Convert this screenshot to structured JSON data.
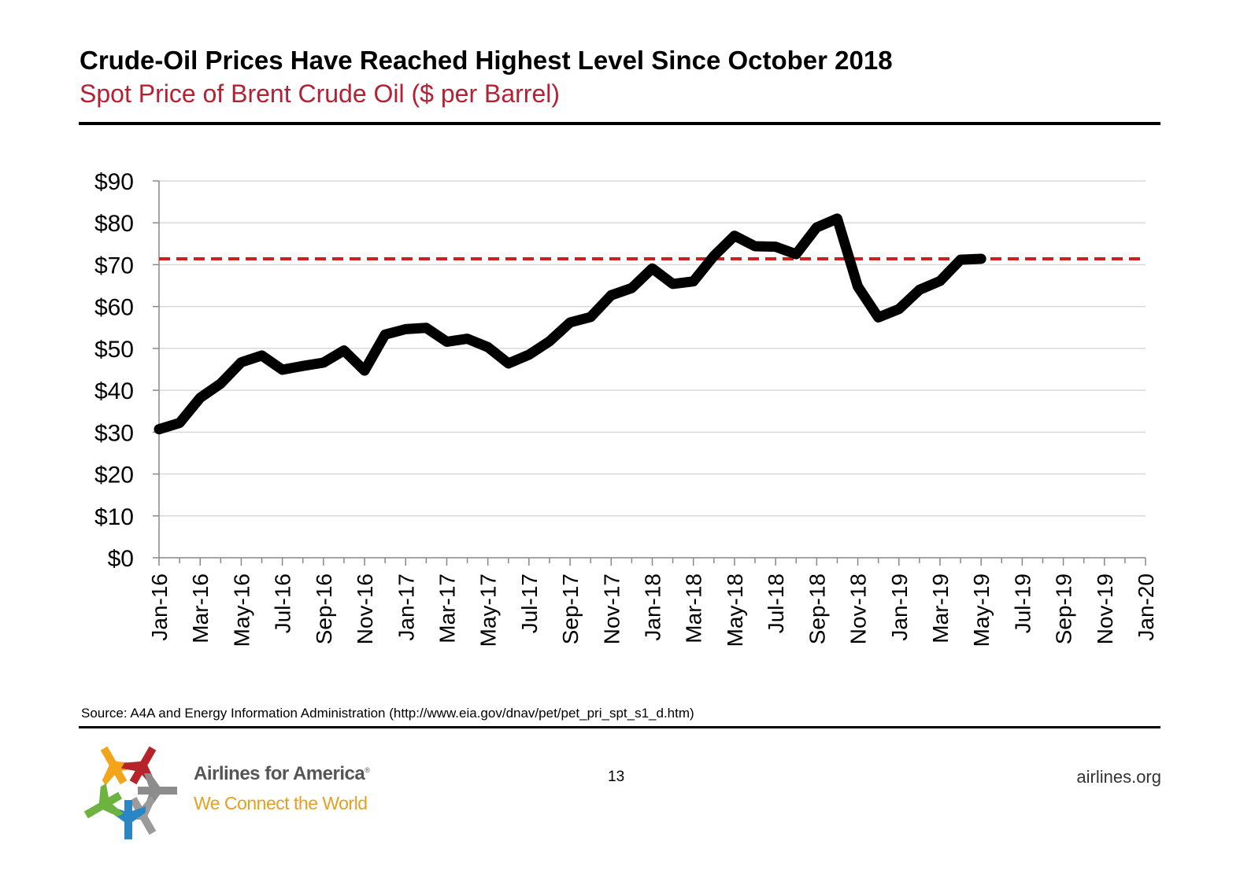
{
  "header": {
    "title": "Crude-Oil Prices Have Reached Highest Level Since October 2018",
    "subtitle": "Spot Price of Brent Crude Oil ($ per Barrel)"
  },
  "footer": {
    "source": "Source: A4A and Energy Information Administration (http://www.eia.gov/dnav/pet/pet_pri_spt_s1_d.htm)",
    "page_number": "13",
    "site": "airlines.org",
    "brand_name": "Airlines for America",
    "brand_mark": "®",
    "brand_tagline": "We Connect the World"
  },
  "colors": {
    "subtitle": "#b22234",
    "series_line": "#000000",
    "reference_line": "#cc1f1f",
    "grid": "#d9d9d9",
    "tagline": "#e6a020"
  },
  "chart_data": {
    "type": "line",
    "ylim": [
      0,
      90
    ],
    "yticks": [
      0,
      10,
      20,
      30,
      40,
      50,
      60,
      70,
      80,
      90
    ],
    "ytick_labels": [
      "$0",
      "$10",
      "$20",
      "$30",
      "$40",
      "$50",
      "$60",
      "$70",
      "$80",
      "$90"
    ],
    "x_start": "Jan-16",
    "x_months": 49,
    "x_tick_labels": [
      "Jan-16",
      "Mar-16",
      "May-16",
      "Jul-16",
      "Sep-16",
      "Nov-16",
      "Jan-17",
      "Mar-17",
      "May-17",
      "Jul-17",
      "Sep-17",
      "Nov-17",
      "Jan-18",
      "Mar-18",
      "May-18",
      "Jul-18",
      "Sep-18",
      "Nov-18",
      "Jan-19",
      "Mar-19",
      "May-19",
      "Jul-19",
      "Sep-19",
      "Nov-19",
      "Jan-20"
    ],
    "grid": true,
    "series": [
      {
        "x": [
          "Jan-16",
          "Feb-16",
          "Mar-16",
          "Apr-16",
          "May-16",
          "Jun-16",
          "Jul-16",
          "Aug-16",
          "Sep-16",
          "Oct-16",
          "Nov-16",
          "Dec-16",
          "Jan-17",
          "Feb-17",
          "Mar-17",
          "Apr-17",
          "May-17",
          "Jun-17",
          "Jul-17",
          "Aug-17",
          "Sep-17",
          "Oct-17",
          "Nov-17",
          "Dec-17",
          "Jan-18",
          "Feb-18",
          "Mar-18",
          "Apr-18",
          "May-18",
          "Jun-18",
          "Jul-18",
          "Aug-18",
          "Sep-18",
          "Oct-18",
          "Nov-18",
          "Dec-18",
          "Jan-19",
          "Feb-19",
          "Mar-19",
          "Apr-19",
          "May-19"
        ],
        "values": [
          30.7,
          32.2,
          38.2,
          41.6,
          46.7,
          48.3,
          44.9,
          45.8,
          46.6,
          49.5,
          44.7,
          53.3,
          54.6,
          54.9,
          51.6,
          52.3,
          50.3,
          46.4,
          48.5,
          51.7,
          56.2,
          57.5,
          62.7,
          64.4,
          69.1,
          65.4,
          66.0,
          72.1,
          76.9,
          74.4,
          74.3,
          72.5,
          78.9,
          81.0,
          64.8,
          57.4,
          59.4,
          64.0,
          66.1,
          71.2,
          71.4
        ]
      }
    ],
    "reference_line": {
      "value": 71.4,
      "style": "dashed"
    }
  }
}
